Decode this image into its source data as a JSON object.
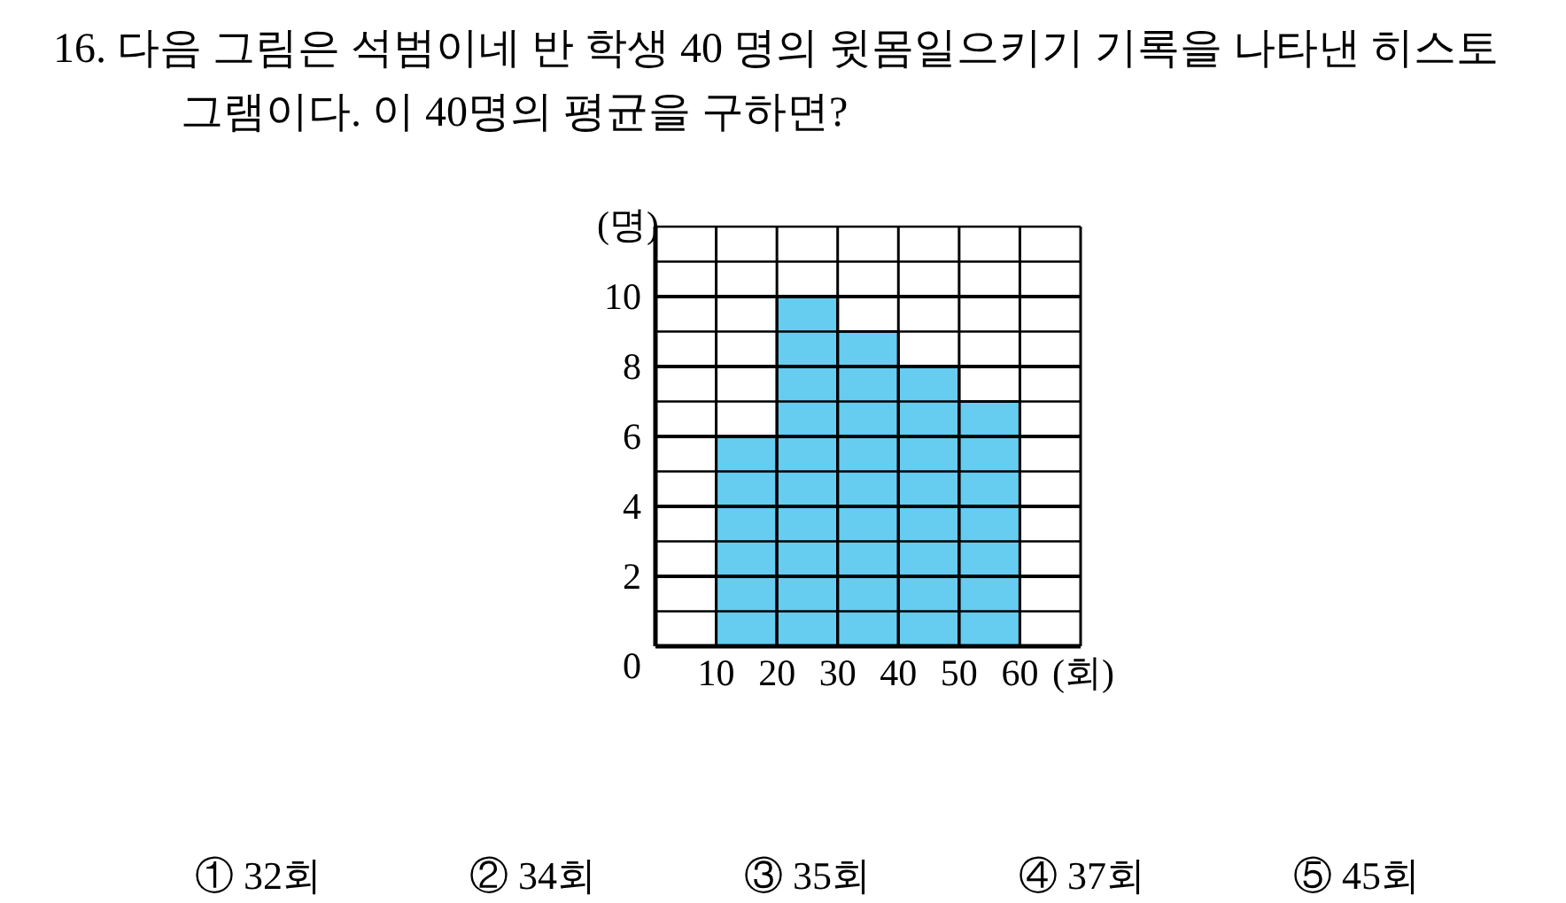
{
  "chart_data": {
    "type": "histogram",
    "title": "16. 다음 그림은 석범이네 반 학생 40 명의 윗몸일으키기 기록을 나타낸 히스토그램이다. 이 40명의 평균을 구하면?",
    "xlabel": "(회)",
    "ylabel": "(명)",
    "bins": [
      10,
      20,
      30,
      40,
      50,
      60
    ],
    "values": [
      6,
      10,
      9,
      8,
      7
    ],
    "color": "#66ccf0",
    "xlim": [
      0,
      70
    ],
    "ylim": [
      0,
      12
    ],
    "xticks": [
      {
        "value": 0,
        "label": null
      },
      10,
      20,
      30,
      40,
      50,
      60,
      {
        "value": 70,
        "label": null
      }
    ],
    "yticks": [
      0,
      {
        "value": 1,
        "label": null
      },
      2,
      {
        "value": 3,
        "label": null
      },
      4,
      {
        "value": 5,
        "label": null
      },
      6,
      {
        "value": 7,
        "label": null
      },
      8,
      {
        "value": 9,
        "label": null
      },
      10,
      {
        "value": 11,
        "label": null
      },
      {
        "value": 12,
        "label": null
      }
    ],
    "grid": true,
    "annotations": [
      "① 32회",
      "② 34회",
      "③ 35회",
      "④ 37회",
      "⑤ 45회"
    ]
  }
}
